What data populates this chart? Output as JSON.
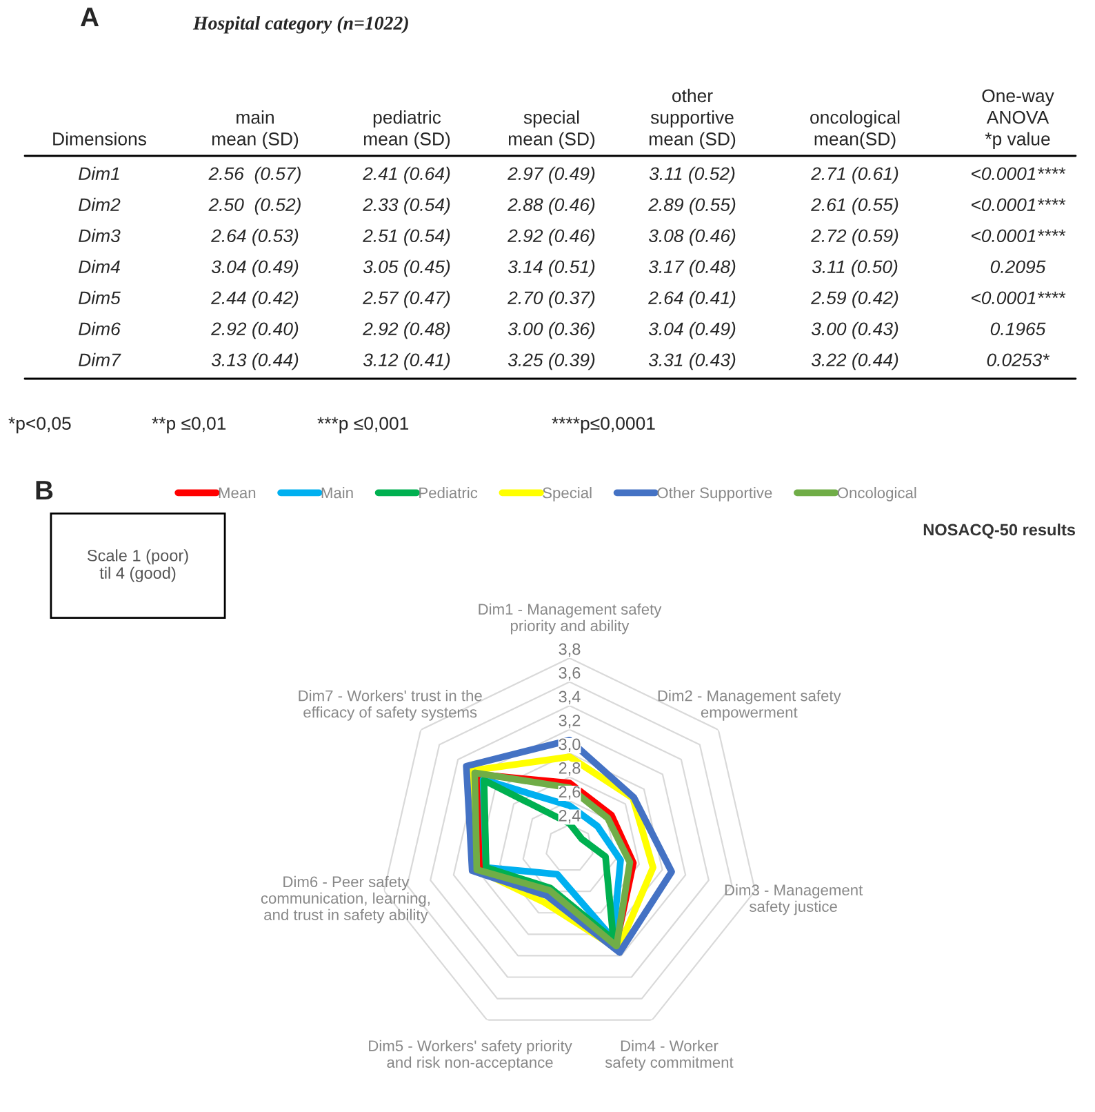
{
  "chart_data": [
    {
      "type": "other",
      "title": "Hospital category (n=1022)",
      "annotations": [
        "A",
        "Dimensions",
        "main\nmean (SD)",
        "pediatric\nmean (SD)",
        "special\nmean (SD)",
        "other\nsupportive\nmean (SD)",
        "oncological\nmean(SD)",
        "One-way\nANOVA\n*p value",
        "Dim1",
        "2.56  (0.57)",
        "2.41 (0.64)",
        "2.97 (0.49)",
        "3.11 (0.52)",
        "2.71 (0.61)",
        "<0.0001****",
        "Dim2",
        "2.50  (0.52)",
        "2.33 (0.54)",
        "2.88 (0.46)",
        "2.89 (0.55)",
        "2.61 (0.55)",
        "<0.0001****",
        "Dim3",
        "2.64 (0.53)",
        "2.51 (0.54)",
        "2.92 (0.46)",
        "3.08 (0.46)",
        "2.72 (0.59)",
        "<0.0001****",
        "Dim4",
        "3.04 (0.49)",
        "3.05 (0.45)",
        "3.14 (0.51)",
        "3.17 (0.48)",
        "3.11 (0.50)",
        "0.2095",
        "Dim5",
        "2.44 (0.42)",
        "2.57 (0.47)",
        "2.70 (0.37)",
        "2.64 (0.41)",
        "2.59 (0.42)",
        "<0.0001****",
        "Dim6",
        "2.92 (0.40)",
        "2.92 (0.48)",
        "3.00 (0.36)",
        "3.04 (0.49)",
        "3.00 (0.43)",
        "0.1965",
        "Dim7",
        "3.13 (0.44)",
        "3.12 (0.41)",
        "3.25 (0.39)",
        "3.31 (0.43)",
        "3.22 (0.44)",
        "0.0253*",
        "*p<0,05",
        "**p ≤0,01",
        "***p ≤0,001",
        "****p≤0,0001"
      ]
    },
    {
      "type": "radar",
      "categories": [
        "Dim1 - Management safety\npriority and ability",
        "Dim2 - Management safety\nempowerment",
        "Dim3 - Management\nsafety justice",
        "Dim4 - Worker\nsafety commitment",
        "Dim5 - Workers' safety priority\nand risk non-acceptance",
        "Dim6 - Peer safety\ncommunication, learning,\nand trust in safety ability",
        "Dim7 - Workers' trust in the\nefficacy of safety systems"
      ],
      "series": [
        {
          "name": "Mean",
          "color": "#ff0000",
          "values": [
            2.75,
            2.65,
            2.75,
            3.1,
            2.6,
            2.97,
            3.2
          ]
        },
        {
          "name": "Main",
          "color": "#00b0f0",
          "values": [
            2.56,
            2.5,
            2.64,
            3.04,
            2.44,
            2.92,
            3.13
          ]
        },
        {
          "name": "Pediatric",
          "color": "#00b050",
          "values": [
            2.41,
            2.33,
            2.51,
            3.05,
            2.57,
            2.92,
            3.12
          ]
        },
        {
          "name": "Special",
          "color": "#ffff00",
          "values": [
            2.97,
            2.88,
            2.92,
            3.14,
            2.7,
            3.0,
            3.25
          ]
        },
        {
          "name": "Other Supportive",
          "color": "#4472c4",
          "values": [
            3.11,
            2.89,
            3.08,
            3.17,
            2.64,
            3.04,
            3.31
          ]
        },
        {
          "name": "Oncological",
          "color": "#70ad47",
          "values": [
            2.71,
            2.61,
            2.72,
            3.11,
            2.59,
            3.0,
            3.22
          ]
        }
      ],
      "ylim": [
        2.2,
        3.8
      ],
      "yticks": [
        {
          "value": 2.4,
          "label": "2,4"
        },
        {
          "value": 2.6,
          "label": "2,6"
        },
        {
          "value": 2.8,
          "label": "2,8"
        },
        {
          "value": 3.0,
          "label": "3,0"
        },
        {
          "value": 3.2,
          "label": "3,2"
        },
        {
          "value": 3.4,
          "label": "3,4"
        },
        {
          "value": 3.6,
          "label": "3,6"
        },
        {
          "value": 3.8,
          "label": "3,8"
        }
      ],
      "grid": true,
      "legend": "top",
      "annotations": [
        "B",
        "NOSACQ-50 results",
        "Scale 1 (poor)\ntil 4 (good)"
      ]
    }
  ]
}
